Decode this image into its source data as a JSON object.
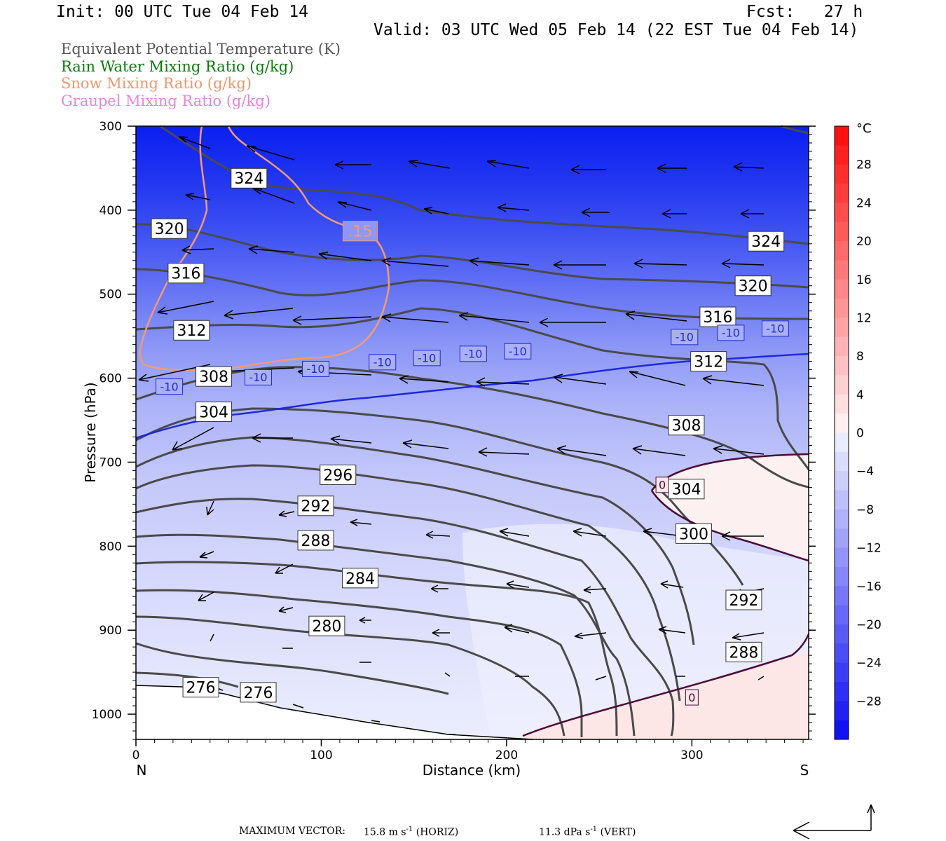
{
  "header": {
    "init": "Init: 00 UTC Tue 04 Feb 14",
    "fcst": "Fcst:   27 h",
    "valid": "Valid: 03 UTC Wed 05 Feb 14 (22 EST Tue 04 Feb 14)"
  },
  "titles": [
    {
      "text": "Equivalent Potential Temperature (K)",
      "color": "#555555"
    },
    {
      "text": "Rain Water Mixing Ratio (g/kg)",
      "color": "#0a7a0a"
    },
    {
      "text": "Snow Mixing Ratio (g/kg)",
      "color": "#f0956a"
    },
    {
      "text": "Graupel Mixing Ratio (g/kg)",
      "color": "#f080e0"
    }
  ],
  "chart_data": {
    "type": "cross-section",
    "xlabel": "Distance (km)",
    "ylabel": "Pressure (hPa)",
    "xlim": [
      0,
      363
    ],
    "ylim": [
      1030,
      300
    ],
    "x_ticks": [
      "0",
      "100",
      "200",
      "300"
    ],
    "y_ticks": [
      "300",
      "400",
      "500",
      "600",
      "700",
      "800",
      "900",
      "1000"
    ],
    "left_end": "N",
    "right_end": "S",
    "colorbar": {
      "unit": "°C",
      "labels": [
        "28",
        "24",
        "20",
        "16",
        "12",
        "8",
        "4",
        "0",
        "-4",
        "-8",
        "-12",
        "-16",
        "-20",
        "-24",
        "-28"
      ]
    },
    "theta_e_labels": [
      {
        "text": "324",
        "x": 61,
        "p": 362
      },
      {
        "text": "320",
        "x": 18,
        "p": 422
      },
      {
        "text": "316",
        "x": 27,
        "p": 475
      },
      {
        "text": "312",
        "x": 30,
        "p": 543
      },
      {
        "text": "308",
        "x": 42,
        "p": 598
      },
      {
        "text": "304",
        "x": 42,
        "p": 640
      },
      {
        "text": "296",
        "x": 109,
        "p": 715
      },
      {
        "text": "292",
        "x": 97,
        "p": 752
      },
      {
        "text": "288",
        "x": 97,
        "p": 793
      },
      {
        "text": "284",
        "x": 121,
        "p": 838
      },
      {
        "text": "280",
        "x": 103,
        "p": 895
      },
      {
        "text": "276",
        "x": 35,
        "p": 968
      },
      {
        "text": "276",
        "x": 66,
        "p": 974
      },
      {
        "text": "324",
        "x": 340,
        "p": 437
      },
      {
        "text": "320",
        "x": 333,
        "p": 490
      },
      {
        "text": "316",
        "x": 314,
        "p": 527
      },
      {
        "text": "312",
        "x": 309,
        "p": 580
      },
      {
        "text": "308",
        "x": 297,
        "p": 656
      },
      {
        "text": "304",
        "x": 297,
        "p": 732
      },
      {
        "text": "300",
        "x": 301,
        "p": 785
      },
      {
        "text": "292",
        "x": 328,
        "p": 864
      },
      {
        "text": "288",
        "x": 328,
        "p": 926
      }
    ],
    "temperature_labels": [
      {
        "text": "-10",
        "x": 18,
        "p": 610
      },
      {
        "text": "-10",
        "x": 66,
        "p": 599
      },
      {
        "text": "-10",
        "x": 97,
        "p": 589
      },
      {
        "text": "-10",
        "x": 133,
        "p": 581
      },
      {
        "text": "-10",
        "x": 157,
        "p": 576
      },
      {
        "text": "-10",
        "x": 182,
        "p": 571
      },
      {
        "text": "-10",
        "x": 206,
        "p": 568
      },
      {
        "text": "-10",
        "x": 296,
        "p": 551
      },
      {
        "text": "-10",
        "x": 321,
        "p": 546
      },
      {
        "text": "-10",
        "x": 345,
        "p": 541
      },
      {
        "text": "0",
        "x": 300,
        "p": 980
      },
      {
        "text": "0",
        "x": 284,
        "p": 727
      }
    ],
    "snow_labels": [
      {
        "text": ".15",
        "x": 121,
        "p": 425
      }
    ],
    "max_vector": {
      "label": "MAXIMUM VECTOR:",
      "horiz": "15.8 m s",
      "horiz_unit": "(HORIZ)",
      "vert": "11.3 dPa s",
      "vert_unit": "(VERT)",
      "exponent": "-1"
    }
  }
}
